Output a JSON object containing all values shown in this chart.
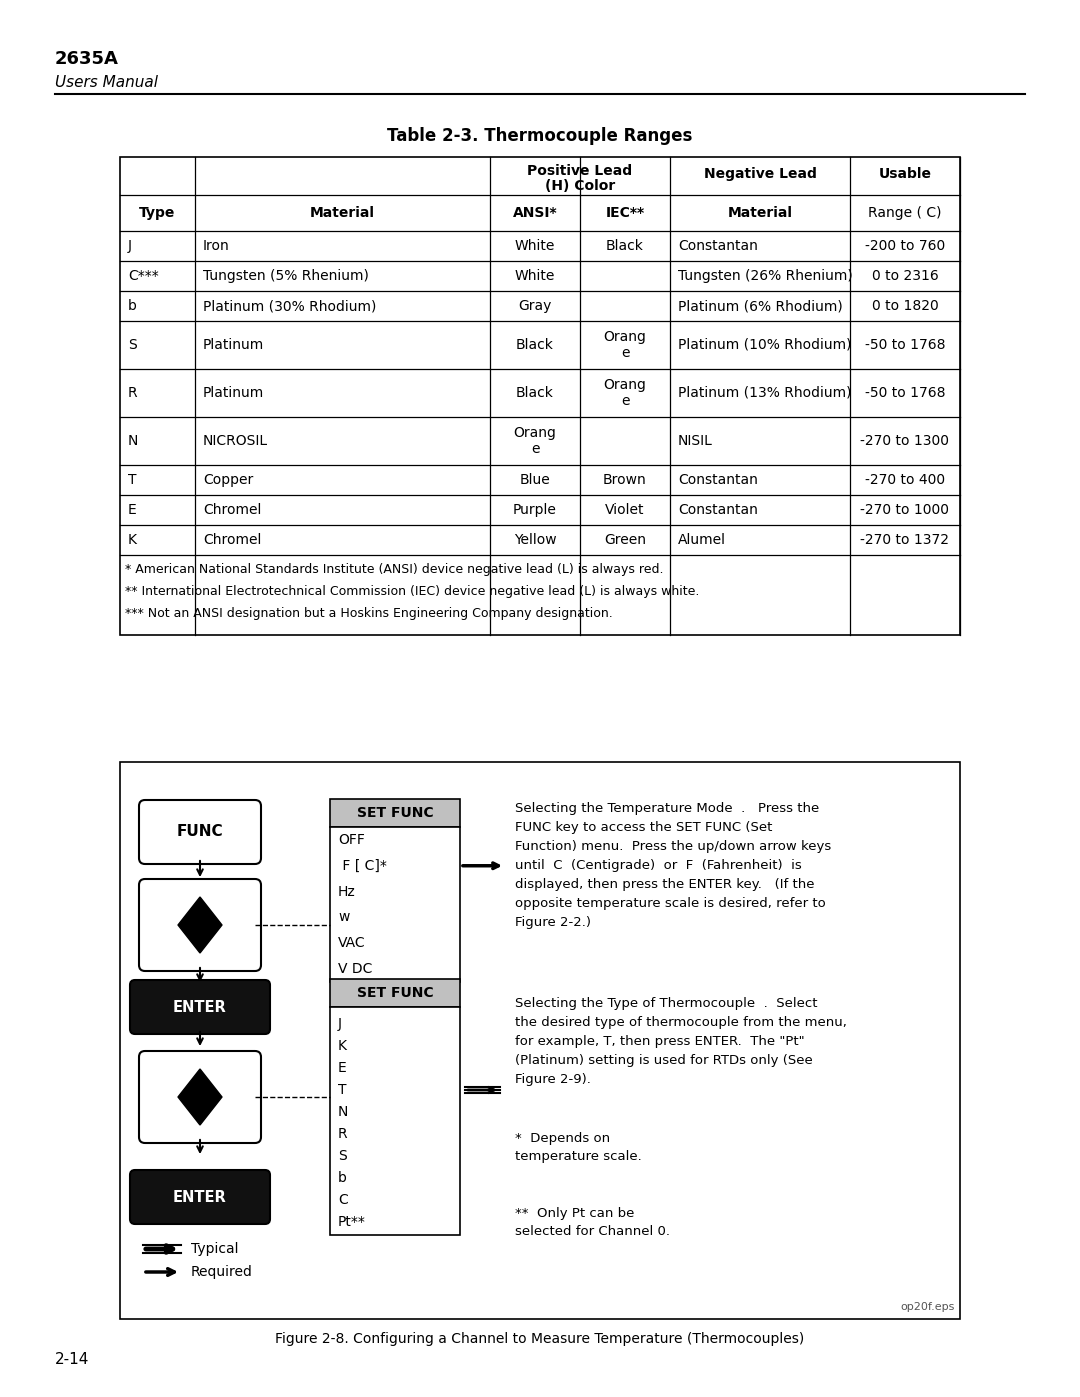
{
  "title_model": "2635A",
  "title_sub": "Users Manual",
  "table_title": "Table 2-3. Thermocouple Ranges",
  "rows": [
    [
      "J",
      "Iron",
      "White",
      "Black",
      "Constantan",
      "-200 to 760"
    ],
    [
      "C***",
      "Tungsten (5% Rhenium)",
      "White",
      "",
      "Tungsten (26% Rhenium)",
      "0 to 2316"
    ],
    [
      "b",
      "Platinum (30% Rhodium)",
      "Gray",
      "",
      "Platinum (6% Rhodium)",
      "0 to 1820"
    ],
    [
      "S",
      "Platinum",
      "Black",
      "Orange",
      "Platinum (10% Rhodium)",
      "-50 to 1768"
    ],
    [
      "R",
      "Platinum",
      "Black",
      "Orange",
      "Platinum (13% Rhodium)",
      "-50 to 1768"
    ],
    [
      "N",
      "NICROSIL",
      "Orange",
      "",
      "NISIL",
      "-270 to 1300"
    ],
    [
      "T",
      "Copper",
      "Blue",
      "Brown",
      "Constantan",
      "-270 to 400"
    ],
    [
      "E",
      "Chromel",
      "Purple",
      "Violet",
      "Constantan",
      "-270 to 1000"
    ],
    [
      "K",
      "Chromel",
      "Yellow",
      "Green",
      "Alumel",
      "-270 to 1372"
    ]
  ],
  "footnotes": [
    "* American National Standards Institute (ANSI) device negative lead (L) is always red.",
    "** International Electrotechnical Commission (IEC) device negative lead (L) is always white.",
    "*** Not an ANSI designation but a Hoskins Engineering Company designation."
  ],
  "figure_caption": "Figure 2-8. Configuring a Channel to Measure Temperature (Thermocouples)",
  "page_number": "2-14",
  "diagram_text_right_top": "Selecting the Temperature Mode  .   Press the\nFUNC key to access the SET FUNC (Set\nFunction) menu.  Press the up/down arrow keys\nuntil  C  (Centigrade)  or  F  (Fahrenheit)  is\ndisplayed, then press the ENTER key.   (If the\nopposite temperature scale is desired, refer to\nFigure 2-2.)",
  "diagram_text_right_bottom": "Selecting the Type of Thermocouple  .  Select\nthe desired type of thermocouple from the menu,\nfor example, T, then press ENTER.  The \"Pt\"\n(Platinum) setting is used for RTDs only (See\nFigure 2-9).",
  "menu1_items": [
    "OFF",
    " F [ C]*",
    "Hz",
    "w",
    "VAC",
    "V DC"
  ],
  "menu2_items": [
    "J",
    "K",
    "E",
    "T",
    "N",
    "R",
    "S",
    "b",
    "C",
    "Pt**"
  ],
  "note1": "*  Depends on\ntemperature scale.",
  "note2": "**  Only Pt can be\nselected for Channel 0.",
  "bg_color": "#ffffff"
}
